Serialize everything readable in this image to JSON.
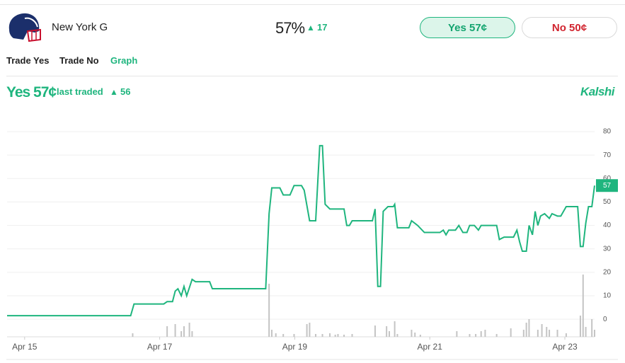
{
  "header": {
    "team": "New York G",
    "chance": "57%",
    "change": "17",
    "yes_button": "Yes 57¢",
    "no_button": "No 50¢"
  },
  "tabs": [
    "Trade Yes",
    "Trade No",
    "Graph"
  ],
  "graph_header": {
    "price": "Yes 57¢",
    "label": "last traded",
    "change": "56",
    "brand": "Kalshi"
  },
  "chart_data": {
    "type": "line",
    "x": [
      14.74,
      16.57,
      16.62,
      17.06,
      17.11,
      17.19,
      17.23,
      17.27,
      17.32,
      17.36,
      17.4,
      17.48,
      17.53,
      17.74,
      17.78,
      18.57,
      18.62,
      18.66,
      18.78,
      18.83,
      18.93,
      18.99,
      19.1,
      19.14,
      19.22,
      19.31,
      19.37,
      19.41,
      19.45,
      19.52,
      19.73,
      19.77,
      19.81,
      19.85,
      20.15,
      20.19,
      20.23,
      20.27,
      20.31,
      20.38,
      20.46,
      20.48,
      20.52,
      20.69,
      20.73,
      20.82,
      20.92,
      21.15,
      21.2,
      21.24,
      21.28,
      21.38,
      21.43,
      21.49,
      21.55,
      21.59,
      21.66,
      21.72,
      21.76,
      21.99,
      22.03,
      22.1,
      22.24,
      22.29,
      22.33,
      22.37,
      22.43,
      22.47,
      22.52,
      22.56,
      22.6,
      22.64,
      22.7,
      22.77,
      22.81,
      22.89,
      22.94,
      23.02,
      23.19,
      23.23,
      23.27,
      23.31,
      23.35,
      23.4,
      23.44
    ],
    "series": [
      {
        "color": "#1fb57e",
        "values": [
          1.5,
          1.5,
          6.5,
          6.5,
          7.5,
          7.5,
          12,
          13,
          10,
          14,
          10,
          17,
          16,
          16,
          13,
          13,
          45,
          56,
          56,
          53,
          53,
          57,
          57,
          55,
          42,
          42,
          74,
          74,
          49,
          47,
          47,
          40,
          40,
          42,
          42,
          47,
          14,
          14,
          46,
          48,
          48,
          49,
          39,
          39,
          42,
          40,
          37,
          37,
          38,
          36,
          38,
          38,
          40,
          37,
          37,
          40,
          40,
          38,
          40,
          40,
          34,
          35,
          35,
          38,
          33,
          29,
          29,
          40,
          36,
          46,
          40,
          44,
          45,
          43,
          45,
          44,
          44,
          48,
          48,
          31,
          31,
          41,
          48,
          48,
          57
        ]
      }
    ],
    "volume": {
      "color": "#c4c4c4",
      "x": [
        16.6,
        17.11,
        17.23,
        17.32,
        17.36,
        17.44,
        17.48,
        18.62,
        18.66,
        18.72,
        18.83,
        18.99,
        19.18,
        19.22,
        19.31,
        19.41,
        19.52,
        19.6,
        19.64,
        19.73,
        19.85,
        20.19,
        20.36,
        20.4,
        20.48,
        20.52,
        20.73,
        20.78,
        20.86,
        21.4,
        21.59,
        21.68,
        21.76,
        21.82,
        21.99,
        22.2,
        22.39,
        22.43,
        22.47,
        22.6,
        22.66,
        22.73,
        22.77,
        22.89,
        23.02,
        23.23,
        23.27,
        23.31,
        23.4,
        23.44
      ],
      "values": [
        5,
        15,
        18,
        8,
        15,
        20,
        8,
        75,
        10,
        5,
        4,
        4,
        18,
        20,
        4,
        4,
        5,
        3,
        4,
        3,
        4,
        16,
        15,
        8,
        22,
        4,
        10,
        6,
        3,
        8,
        4,
        4,
        8,
        10,
        4,
        12,
        10,
        20,
        25,
        10,
        18,
        14,
        10,
        10,
        5,
        30,
        88,
        14,
        25,
        10
      ]
    },
    "xlim": [
      14.74,
      23.44
    ],
    "xticks": [
      {
        "value": 15,
        "label": "Apr 15"
      },
      {
        "value": 17,
        "label": "Apr 17"
      },
      {
        "value": 19,
        "label": "Apr 19"
      },
      {
        "value": 21,
        "label": "Apr 21"
      },
      {
        "value": 23,
        "label": "Apr 23"
      }
    ],
    "ylim": [
      -7.5,
      80
    ],
    "yticks": [
      0,
      10,
      20,
      30,
      40,
      50,
      60,
      70,
      80
    ],
    "grid": true
  }
}
